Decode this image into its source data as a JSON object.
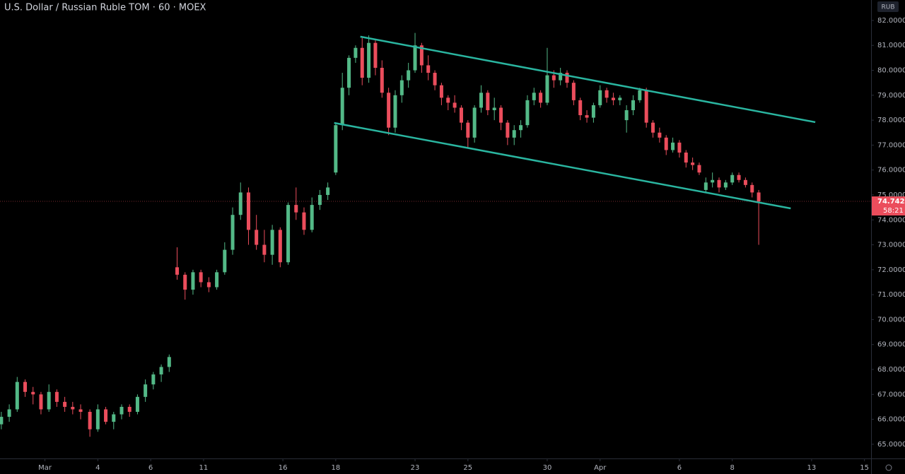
{
  "chart_data": {
    "type": "candlestick",
    "title": "U.S. Dollar / Russian Ruble TOM · 60 · MOEX",
    "currency": "RUB",
    "up_color": "#53b987",
    "down_color": "#eb4d5c",
    "trendline_color": "#2ab5a0",
    "last_price": 74.7425,
    "countdown": "58:21",
    "xlim": [
      -1.7,
      31.25
    ],
    "ylim": [
      64.43,
      82.82
    ],
    "xticks": [
      {
        "value": 0,
        "label": "Mar"
      },
      {
        "value": 2,
        "label": "4"
      },
      {
        "value": 4,
        "label": "6"
      },
      {
        "value": 6,
        "label": "11"
      },
      {
        "value": 9,
        "label": "16"
      },
      {
        "value": 11,
        "label": "18"
      },
      {
        "value": 14,
        "label": "23"
      },
      {
        "value": 16,
        "label": "25"
      },
      {
        "value": 19,
        "label": "30"
      },
      {
        "value": 21,
        "label": "Apr"
      },
      {
        "value": 24,
        "label": "6"
      },
      {
        "value": 26,
        "label": "8"
      },
      {
        "value": 29,
        "label": "13"
      },
      {
        "value": 31,
        "label": "15"
      }
    ],
    "yticks": [
      {
        "value": 65,
        "label": "65.0000"
      },
      {
        "value": 66,
        "label": "66.0000"
      },
      {
        "value": 67,
        "label": "67.0000"
      },
      {
        "value": 68,
        "label": "68.0000"
      },
      {
        "value": 69,
        "label": "69.0000"
      },
      {
        "value": 70,
        "label": "70.0000"
      },
      {
        "value": 71,
        "label": "71.0000"
      },
      {
        "value": 72,
        "label": "72.0000"
      },
      {
        "value": 73,
        "label": "73.0000"
      },
      {
        "value": 74,
        "label": "74.0000"
      },
      {
        "value": 75,
        "label": "75.0000"
      },
      {
        "value": 76,
        "label": "76.0000"
      },
      {
        "value": 77,
        "label": "77.0000"
      },
      {
        "value": 78,
        "label": "78.0000"
      },
      {
        "value": 79,
        "label": "79.0000"
      },
      {
        "value": 80,
        "label": "80.0000"
      },
      {
        "value": 81,
        "label": "81.0000"
      },
      {
        "value": 82,
        "label": "82.0000"
      }
    ],
    "trendlines": [
      {
        "x": [
          11.93,
          29.14
        ],
        "y": [
          81.35,
          77.92
        ]
      },
      {
        "x": [
          10.94,
          28.21
        ],
        "y": [
          77.89,
          74.46
        ]
      }
    ],
    "ohlc": [
      [
        -1.65,
        65.8,
        66.3,
        65.6,
        66.1
      ],
      [
        -1.35,
        66.1,
        66.6,
        65.9,
        66.4
      ],
      [
        -1.05,
        66.4,
        67.7,
        66.3,
        67.5
      ],
      [
        -0.75,
        67.5,
        67.6,
        66.9,
        67.1
      ],
      [
        -0.45,
        67.1,
        67.3,
        66.6,
        67.0
      ],
      [
        -0.15,
        67.0,
        67.1,
        66.2,
        66.4
      ],
      [
        0.15,
        66.4,
        67.4,
        66.3,
        67.1
      ],
      [
        0.45,
        67.1,
        67.2,
        66.5,
        66.7
      ],
      [
        0.75,
        66.7,
        66.9,
        66.3,
        66.5
      ],
      [
        1.05,
        66.5,
        66.7,
        66.2,
        66.4
      ],
      [
        1.35,
        66.4,
        66.6,
        66.0,
        66.3
      ],
      [
        1.7,
        66.3,
        66.4,
        65.3,
        65.6
      ],
      [
        2.0,
        65.6,
        66.6,
        65.5,
        66.4
      ],
      [
        2.3,
        66.4,
        66.5,
        65.8,
        65.9
      ],
      [
        2.6,
        65.9,
        66.3,
        65.6,
        66.2
      ],
      [
        2.9,
        66.2,
        66.6,
        66.0,
        66.5
      ],
      [
        3.2,
        66.5,
        66.6,
        66.1,
        66.3
      ],
      [
        3.5,
        66.3,
        67.0,
        66.2,
        66.9
      ],
      [
        3.8,
        66.9,
        67.6,
        66.7,
        67.4
      ],
      [
        4.1,
        67.4,
        67.9,
        67.2,
        67.8
      ],
      [
        4.4,
        67.8,
        68.2,
        67.5,
        68.1
      ],
      [
        4.7,
        68.1,
        68.6,
        67.9,
        68.5
      ],
      [
        5.0,
        72.1,
        72.9,
        71.6,
        71.8
      ],
      [
        5.3,
        71.8,
        71.9,
        70.8,
        71.2
      ],
      [
        5.6,
        71.2,
        72.0,
        71.0,
        71.9
      ],
      [
        5.9,
        71.9,
        72.0,
        71.3,
        71.5
      ],
      [
        6.2,
        71.5,
        71.7,
        71.1,
        71.3
      ],
      [
        6.5,
        71.3,
        72.0,
        71.2,
        71.9
      ],
      [
        6.8,
        71.9,
        73.1,
        71.8,
        72.8
      ],
      [
        7.1,
        72.8,
        74.5,
        72.6,
        74.2
      ],
      [
        7.4,
        74.2,
        75.5,
        74.0,
        75.1
      ],
      [
        7.7,
        75.1,
        75.3,
        73.0,
        73.6
      ],
      [
        8.0,
        73.6,
        74.2,
        72.8,
        73.0
      ],
      [
        8.3,
        73.0,
        73.6,
        72.3,
        72.6
      ],
      [
        8.6,
        72.6,
        73.8,
        72.2,
        73.6
      ],
      [
        8.9,
        73.6,
        73.7,
        72.1,
        72.3
      ],
      [
        9.2,
        72.3,
        74.7,
        72.2,
        74.6
      ],
      [
        9.5,
        74.6,
        75.3,
        74.0,
        74.3
      ],
      [
        9.8,
        74.3,
        74.5,
        73.4,
        73.6
      ],
      [
        10.1,
        73.6,
        74.9,
        73.5,
        74.6
      ],
      [
        10.4,
        74.6,
        75.2,
        74.4,
        75.0
      ],
      [
        10.7,
        75.0,
        75.5,
        74.8,
        75.3
      ],
      [
        11.0,
        75.9,
        77.9,
        75.8,
        77.8
      ],
      [
        11.25,
        77.8,
        79.9,
        77.6,
        79.3
      ],
      [
        11.5,
        79.3,
        80.6,
        79.0,
        80.5
      ],
      [
        11.75,
        80.5,
        81.0,
        80.3,
        80.9
      ],
      [
        12.0,
        80.9,
        81.3,
        79.4,
        79.7
      ],
      [
        12.25,
        79.7,
        81.4,
        79.5,
        81.1
      ],
      [
        12.5,
        81.1,
        81.2,
        79.8,
        80.1
      ],
      [
        12.75,
        80.1,
        80.4,
        78.9,
        79.1
      ],
      [
        13.0,
        79.1,
        79.3,
        77.4,
        77.7
      ],
      [
        13.25,
        77.7,
        79.2,
        77.5,
        79.0
      ],
      [
        13.5,
        79.0,
        79.8,
        78.7,
        79.6
      ],
      [
        13.75,
        79.6,
        80.3,
        79.3,
        80.0
      ],
      [
        14.0,
        80.0,
        81.5,
        79.9,
        81.0
      ],
      [
        14.25,
        81.0,
        81.1,
        79.9,
        80.2
      ],
      [
        14.5,
        80.2,
        80.6,
        79.6,
        79.9
      ],
      [
        14.75,
        79.9,
        80.0,
        79.2,
        79.4
      ],
      [
        15.0,
        79.4,
        79.5,
        78.6,
        78.9
      ],
      [
        15.25,
        78.9,
        79.0,
        78.4,
        78.7
      ],
      [
        15.5,
        78.7,
        79.0,
        78.3,
        78.5
      ],
      [
        15.75,
        78.5,
        78.6,
        77.6,
        77.9
      ],
      [
        16.0,
        77.9,
        78.0,
        76.9,
        77.3
      ],
      [
        16.25,
        77.3,
        78.6,
        77.1,
        78.5
      ],
      [
        16.5,
        78.5,
        79.4,
        78.3,
        79.1
      ],
      [
        16.75,
        79.1,
        79.2,
        78.2,
        78.4
      ],
      [
        17.0,
        78.4,
        78.9,
        78.0,
        78.5
      ],
      [
        17.25,
        78.5,
        78.6,
        77.6,
        77.9
      ],
      [
        17.5,
        77.9,
        78.0,
        77.0,
        77.3
      ],
      [
        17.75,
        77.3,
        77.8,
        77.0,
        77.6
      ],
      [
        18.0,
        77.6,
        78.0,
        77.3,
        77.8
      ],
      [
        18.25,
        77.8,
        79.0,
        77.7,
        78.8
      ],
      [
        18.5,
        78.8,
        79.3,
        78.6,
        79.1
      ],
      [
        18.75,
        79.1,
        79.2,
        78.5,
        78.7
      ],
      [
        19.0,
        78.7,
        80.9,
        78.6,
        79.8
      ],
      [
        19.25,
        79.8,
        80.0,
        79.3,
        79.6
      ],
      [
        19.5,
        79.6,
        80.1,
        79.4,
        79.9
      ],
      [
        19.75,
        79.9,
        80.0,
        79.3,
        79.5
      ],
      [
        20.0,
        79.5,
        79.6,
        78.6,
        78.8
      ],
      [
        20.25,
        78.8,
        78.9,
        78.0,
        78.2
      ],
      [
        20.5,
        78.2,
        78.4,
        77.9,
        78.1
      ],
      [
        20.75,
        78.1,
        78.7,
        77.9,
        78.6
      ],
      [
        21.0,
        78.6,
        79.4,
        78.5,
        79.2
      ],
      [
        21.25,
        79.2,
        79.3,
        78.7,
        78.9
      ],
      [
        21.5,
        78.9,
        79.1,
        78.6,
        78.8
      ],
      [
        21.75,
        78.8,
        79.0,
        78.6,
        78.9
      ],
      [
        22.0,
        78.0,
        78.6,
        77.5,
        78.4
      ],
      [
        22.25,
        78.4,
        79.0,
        78.2,
        78.8
      ],
      [
        22.5,
        78.8,
        79.3,
        78.7,
        79.2
      ],
      [
        22.75,
        79.2,
        79.3,
        77.7,
        77.9
      ],
      [
        23.0,
        77.9,
        78.0,
        77.3,
        77.5
      ],
      [
        23.25,
        77.5,
        77.7,
        77.1,
        77.3
      ],
      [
        23.5,
        77.3,
        77.4,
        76.6,
        76.8
      ],
      [
        23.75,
        76.8,
        77.3,
        76.7,
        77.1
      ],
      [
        24.0,
        77.1,
        77.2,
        76.5,
        76.7
      ],
      [
        24.25,
        76.7,
        76.8,
        76.1,
        76.3
      ],
      [
        24.5,
        76.3,
        76.5,
        76.0,
        76.2
      ],
      [
        24.75,
        76.2,
        76.3,
        75.8,
        75.9
      ],
      [
        25.0,
        75.2,
        75.7,
        75.1,
        75.5
      ],
      [
        25.25,
        75.5,
        75.9,
        75.3,
        75.6
      ],
      [
        25.5,
        75.6,
        75.7,
        75.1,
        75.3
      ],
      [
        25.75,
        75.3,
        75.6,
        75.2,
        75.5
      ],
      [
        26.0,
        75.5,
        75.9,
        75.4,
        75.8
      ],
      [
        26.25,
        75.8,
        75.9,
        75.5,
        75.6
      ],
      [
        26.5,
        75.6,
        75.7,
        75.3,
        75.4
      ],
      [
        26.75,
        75.4,
        75.5,
        74.9,
        75.1
      ],
      [
        27.0,
        75.1,
        75.2,
        73.0,
        74.7425
      ]
    ]
  }
}
